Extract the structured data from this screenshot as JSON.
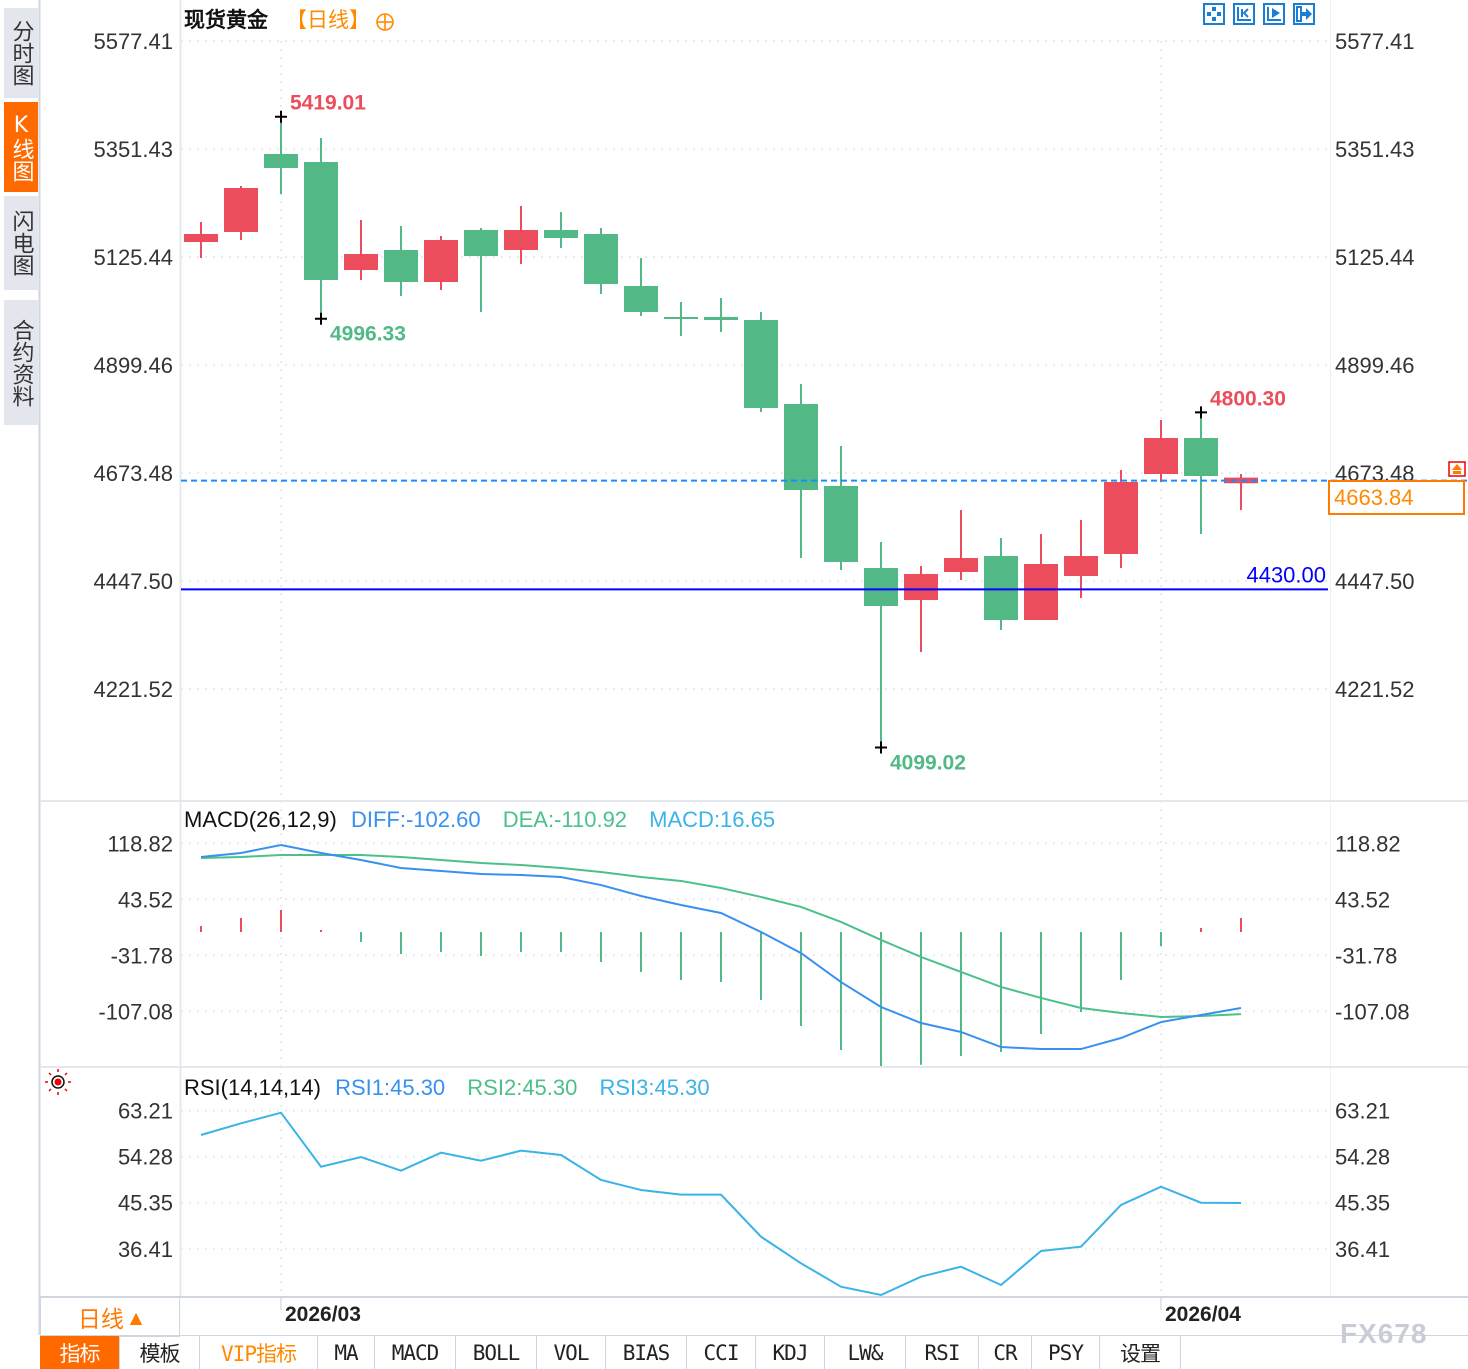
{
  "sidebar": {
    "tabs": [
      {
        "label": "分时图",
        "active": false
      },
      {
        "label": "K线图",
        "active": true
      },
      {
        "label": "闪电图",
        "active": false
      },
      {
        "label": "合约资料",
        "active": false
      }
    ]
  },
  "header": {
    "title": "现货黄金",
    "period": "【日线】",
    "add_icon": "circle-plus-icon",
    "tool_icons": [
      "crosshair-icon",
      "zoom-range-left-icon",
      "play-forward-icon",
      "jump-latest-icon"
    ]
  },
  "colors": {
    "up": "#eb4d5c",
    "down": "#52b986",
    "accent": "#ff6a00",
    "diff": "#3891f0",
    "dea": "#4cc08a",
    "rsi": "#3ab3e6",
    "ref_line": "#0000ff",
    "last_line": "#1a8cff"
  },
  "chart_data": [
    {
      "type": "candlestick",
      "title": "现货黄金",
      "period": "【日线】",
      "x_ticks": [
        {
          "label": "2026/03",
          "index": 2
        },
        {
          "label": "2026/04",
          "index": 24
        }
      ],
      "y_ticks": [
        "5577.41",
        "5351.43",
        "5125.44",
        "4899.46",
        "4673.48",
        "4447.50",
        "4221.52"
      ],
      "grid": true,
      "candles": [
        {
          "o": 5156.8,
          "h": 5198.7,
          "l": 5123.3,
          "c": 5173.6
        },
        {
          "o": 5177.8,
          "h": 5274.0,
          "l": 5161.0,
          "c": 5269.8
        },
        {
          "o": 5341.0,
          "h": 5419.01,
          "l": 5257.3,
          "c": 5311.7
        },
        {
          "o": 5324.2,
          "h": 5374.4,
          "l": 4996.33,
          "c": 5077.3
        },
        {
          "o": 5098.2,
          "h": 5202.9,
          "l": 5077.3,
          "c": 5131.7
        },
        {
          "o": 5140.1,
          "h": 5190.3,
          "l": 5043.8,
          "c": 5073.1
        },
        {
          "o": 5073.1,
          "h": 5169.4,
          "l": 5056.4,
          "c": 5161.0
        },
        {
          "o": 5181.9,
          "h": 5186.1,
          "l": 5010.4,
          "c": 5127.5
        },
        {
          "o": 5140.1,
          "h": 5232.2,
          "l": 5110.8,
          "c": 5181.9
        },
        {
          "o": 5181.9,
          "h": 5219.6,
          "l": 5144.3,
          "c": 5165.2
        },
        {
          "o": 5173.6,
          "h": 5186.1,
          "l": 5048.0,
          "c": 5068.9
        },
        {
          "o": 5064.8,
          "h": 5123.3,
          "l": 5002.0,
          "c": 5010.4
        },
        {
          "o": 4999.9,
          "h": 5031.3,
          "l": 4960.1,
          "c": 4997.8
        },
        {
          "o": 5000.0,
          "h": 5039.7,
          "l": 4968.5,
          "c": 4993.6
        },
        {
          "o": 4993.6,
          "h": 5010.4,
          "l": 4801.1,
          "c": 4809.5
        },
        {
          "o": 4817.9,
          "h": 4859.7,
          "l": 4495.6,
          "c": 4637.9
        },
        {
          "o": 4646.3,
          "h": 4730.0,
          "l": 4470.5,
          "c": 4487.3
        },
        {
          "o": 4474.7,
          "h": 4529.1,
          "l": 4099.02,
          "c": 4395.2
        },
        {
          "o": 4407.7,
          "h": 4478.9,
          "l": 4298.9,
          "c": 4462.1
        },
        {
          "o": 4466.3,
          "h": 4596.1,
          "l": 4449.6,
          "c": 4495.6
        },
        {
          "o": 4499.8,
          "h": 4537.5,
          "l": 4345.0,
          "c": 4365.9
        },
        {
          "o": 4365.9,
          "h": 4545.8,
          "l": 4365.9,
          "c": 4483.1
        },
        {
          "o": 4458.0,
          "h": 4575.1,
          "l": 4411.9,
          "c": 4499.8
        },
        {
          "o": 4504.0,
          "h": 4679.8,
          "l": 4474.7,
          "c": 4654.7
        },
        {
          "o": 4671.4,
          "h": 4784.4,
          "l": 4654.7,
          "c": 4746.7
        },
        {
          "o": 4746.7,
          "h": 4800.3,
          "l": 4545.8,
          "c": 4667.2
        },
        {
          "o": 4652.0,
          "h": 4671.4,
          "l": 4596.1,
          "c": 4663.84
        }
      ],
      "annotations": [
        {
          "label": "5419.01",
          "index": 2,
          "value": 5419.01,
          "kind": "high"
        },
        {
          "label": "4996.33",
          "index": 3,
          "value": 4996.33,
          "kind": "low"
        },
        {
          "label": "4099.02",
          "index": 17,
          "value": 4099.02,
          "kind": "low"
        },
        {
          "label": "4800.30",
          "index": 25,
          "value": 4800.3,
          "kind": "high"
        }
      ],
      "ref_line": {
        "label": "4430.00",
        "value": 4430.0
      },
      "last_price": {
        "label": "4663.84",
        "value": 4663.84
      }
    },
    {
      "type": "line",
      "title": "MACD(26,12,9)",
      "legend": {
        "diff": "DIFF:-102.60",
        "dea": "DEA:-110.92",
        "macd": "MACD:16.65"
      },
      "y_ticks": [
        "118.82",
        "43.52",
        "-31.78",
        "-107.08"
      ],
      "series": [
        {
          "name": "DIFF",
          "values": [
            100.4,
            105.8,
            116.5,
            105.8,
            96.4,
            85.6,
            81.6,
            77.5,
            76.2,
            73.5,
            62.7,
            48.0,
            35.9,
            25.1,
            -0.4,
            -28.8,
            -67.8,
            -101.3,
            -122.8,
            -134.9,
            -155.1,
            -157.8,
            -157.8,
            -143.0,
            -121.5,
            -112.1,
            -102.6
          ]
        },
        {
          "name": "DEA",
          "values": [
            99.1,
            100.4,
            103.1,
            103.1,
            103.1,
            100.4,
            96.4,
            92.3,
            89.7,
            85.6,
            80.3,
            73.5,
            68.2,
            58.7,
            46.7,
            33.3,
            13.1,
            -11.1,
            -34.0,
            -54.1,
            -74.3,
            -89.1,
            -102.6,
            -109.3,
            -114.7,
            -113.4,
            -110.92
          ]
        },
        {
          "name": "MACD",
          "type": "bar",
          "values": [
            7.1,
            16.7,
            26.2,
            2.4,
            -11.9,
            -26.2,
            -23.8,
            -28.6,
            -23.8,
            -23.8,
            -35.7,
            -47.6,
            -57.1,
            -59.5,
            -80.9,
            -111.9,
            -140.4,
            -160,
            -158,
            -147.6,
            -142.8,
            -121.4,
            -95.2,
            -57.1,
            -16.7,
            4.8,
            16.65
          ]
        }
      ]
    },
    {
      "type": "line",
      "title": "RSI(14,14,14)",
      "legend": {
        "rsi1": "RSI1:45.30",
        "rsi2": "RSI2:45.30",
        "rsi3": "RSI3:45.30"
      },
      "y_ticks": [
        "63.21",
        "54.28",
        "45.35",
        "36.41"
      ],
      "series": [
        {
          "name": "RSI",
          "values": [
            58.49,
            60.76,
            62.82,
            52.34,
            54.22,
            51.56,
            55.06,
            53.5,
            55.45,
            54.61,
            49.76,
            47.82,
            46.91,
            46.91,
            38.75,
            33.59,
            29.05,
            27.44,
            30.99,
            32.93,
            29.38,
            35.98,
            36.81,
            44.91,
            48.46,
            45.35,
            45.3
          ]
        }
      ]
    }
  ],
  "period_button": {
    "label": "日线",
    "icon": "triangle-up-icon"
  },
  "toolbar": {
    "items": [
      {
        "label": "指标",
        "style": "active"
      },
      {
        "label": "模板",
        "style": ""
      },
      {
        "label": "VIP指标",
        "style": "vip"
      },
      {
        "label": "MA",
        "style": ""
      },
      {
        "label": "MACD",
        "style": ""
      },
      {
        "label": "BOLL",
        "style": ""
      },
      {
        "label": "VOL",
        "style": ""
      },
      {
        "label": "BIAS",
        "style": ""
      },
      {
        "label": "CCI",
        "style": ""
      },
      {
        "label": "KDJ",
        "style": ""
      },
      {
        "label": "LW&",
        "style": ""
      },
      {
        "label": "RSI",
        "style": ""
      },
      {
        "label": "CR",
        "style": ""
      },
      {
        "label": "PSY",
        "style": ""
      },
      {
        "label": "设置",
        "style": ""
      }
    ]
  },
  "watermark": "FX678"
}
